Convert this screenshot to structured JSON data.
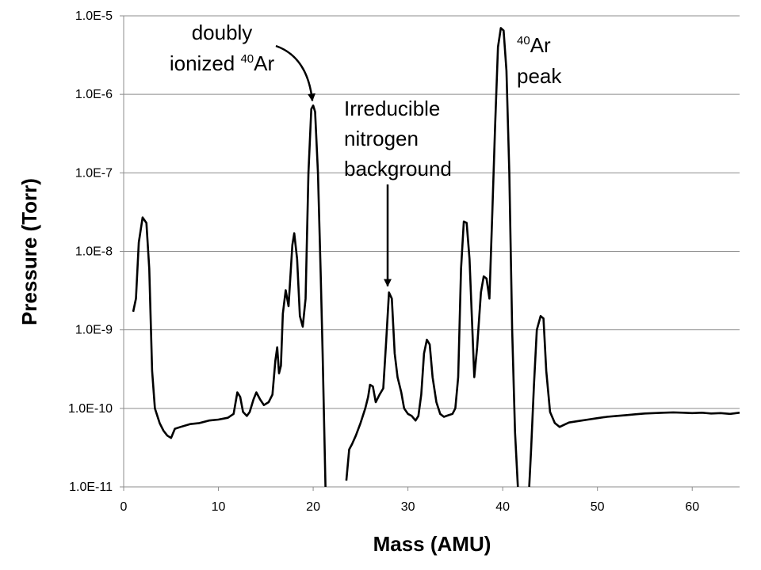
{
  "chart_data": {
    "type": "line",
    "title": "",
    "xlabel": "Mass (AMU)",
    "ylabel": "Pressure (Torr)",
    "xlim": [
      0,
      65
    ],
    "ylim": [
      1e-11,
      1e-05
    ],
    "yscale": "log",
    "grid": "horizontal major gridlines",
    "legend": "none",
    "x_ticks": [
      {
        "value": 0,
        "label": "0"
      },
      {
        "value": 10,
        "label": "10"
      },
      {
        "value": 20,
        "label": "20"
      },
      {
        "value": 30,
        "label": "30"
      },
      {
        "value": 40,
        "label": "40"
      },
      {
        "value": 50,
        "label": "50"
      },
      {
        "value": 60,
        "label": "60"
      }
    ],
    "y_ticks": [
      {
        "value": 1e-11,
        "label": "1.0E-11"
      },
      {
        "value": 1e-10,
        "label": "1.0E-10"
      },
      {
        "value": 1e-09,
        "label": "1.0E-9"
      },
      {
        "value": 1e-08,
        "label": "1.0E-8"
      },
      {
        "value": 1e-07,
        "label": "1.0E-7"
      },
      {
        "value": 1e-06,
        "label": "1.0E-6"
      },
      {
        "value": 1e-05,
        "label": "1.0E-5"
      }
    ],
    "series": [
      {
        "color": "#000000",
        "segments": [
          [
            [
              1.0,
              1.7e-09
            ],
            [
              1.3,
              2.5e-09
            ],
            [
              1.6,
              1.3e-08
            ],
            [
              2.0,
              2.7e-08
            ],
            [
              2.4,
              2.3e-08
            ],
            [
              2.7,
              6e-09
            ],
            [
              3.0,
              3e-10
            ],
            [
              3.3,
              1e-10
            ],
            [
              3.8,
              6.5e-11
            ],
            [
              4.2,
              5.2e-11
            ],
            [
              4.6,
              4.5e-11
            ],
            [
              5.0,
              4.2e-11
            ],
            [
              5.4,
              5.5e-11
            ],
            [
              6.0,
              5.8e-11
            ],
            [
              7.0,
              6.3e-11
            ],
            [
              8.0,
              6.5e-11
            ],
            [
              9.0,
              7e-11
            ],
            [
              10.0,
              7.2e-11
            ],
            [
              11.0,
              7.6e-11
            ],
            [
              11.6,
              8.5e-11
            ],
            [
              12.0,
              1.6e-10
            ],
            [
              12.3,
              1.4e-10
            ],
            [
              12.6,
              9e-11
            ],
            [
              13.0,
              8e-11
            ],
            [
              13.3,
              9e-11
            ],
            [
              13.7,
              1.3e-10
            ],
            [
              14.0,
              1.6e-10
            ],
            [
              14.4,
              1.3e-10
            ],
            [
              14.8,
              1.1e-10
            ],
            [
              15.3,
              1.2e-10
            ],
            [
              15.7,
              1.5e-10
            ],
            [
              16.0,
              4e-10
            ],
            [
              16.2,
              6e-10
            ],
            [
              16.4,
              2.8e-10
            ],
            [
              16.6,
              3.5e-10
            ],
            [
              16.8,
              1.6e-09
            ],
            [
              17.1,
              3.2e-09
            ],
            [
              17.4,
              2e-09
            ],
            [
              17.8,
              1.2e-08
            ],
            [
              18.0,
              1.7e-08
            ],
            [
              18.3,
              8e-09
            ],
            [
              18.6,
              1.5e-09
            ],
            [
              18.9,
              1.1e-09
            ],
            [
              19.2,
              2.5e-09
            ],
            [
              19.5,
              1e-07
            ],
            [
              19.8,
              6.5e-07
            ],
            [
              20.0,
              7.2e-07
            ],
            [
              20.2,
              6e-07
            ],
            [
              20.5,
              1e-07
            ],
            [
              20.8,
              5e-09
            ],
            [
              21.0,
              5e-10
            ],
            [
              21.3,
              1e-11
            ]
          ],
          [
            [
              23.5,
              1.2e-11
            ],
            [
              23.8,
              3e-11
            ],
            [
              24.1,
              3.5e-11
            ],
            [
              24.5,
              4.5e-11
            ],
            [
              25.0,
              6.5e-11
            ],
            [
              25.5,
              1e-10
            ],
            [
              25.8,
              1.4e-10
            ],
            [
              26.0,
              2e-10
            ],
            [
              26.3,
              1.9e-10
            ],
            [
              26.6,
              1.2e-10
            ],
            [
              27.0,
              1.5e-10
            ],
            [
              27.4,
              1.8e-10
            ],
            [
              27.7,
              7e-10
            ],
            [
              28.0,
              3e-09
            ],
            [
              28.3,
              2.5e-09
            ],
            [
              28.6,
              5e-10
            ],
            [
              28.9,
              2.5e-10
            ],
            [
              29.3,
              1.6e-10
            ],
            [
              29.6,
              1e-10
            ],
            [
              30.0,
              8.5e-11
            ],
            [
              30.4,
              8e-11
            ],
            [
              30.8,
              7e-11
            ],
            [
              31.1,
              8e-11
            ],
            [
              31.4,
              1.5e-10
            ],
            [
              31.7,
              5e-10
            ],
            [
              32.0,
              7.5e-10
            ],
            [
              32.3,
              6.5e-10
            ],
            [
              32.6,
              2.5e-10
            ],
            [
              33.0,
              1.2e-10
            ],
            [
              33.4,
              8.5e-11
            ],
            [
              33.8,
              7.8e-11
            ],
            [
              34.3,
              8.2e-11
            ],
            [
              34.7,
              8.5e-11
            ],
            [
              35.0,
              1e-10
            ],
            [
              35.3,
              2.5e-10
            ],
            [
              35.6,
              6e-09
            ],
            [
              35.9,
              2.4e-08
            ],
            [
              36.2,
              2.3e-08
            ],
            [
              36.5,
              8e-09
            ],
            [
              36.8,
              1e-09
            ],
            [
              37.0,
              2.5e-10
            ],
            [
              37.3,
              6e-10
            ],
            [
              37.7,
              3e-09
            ],
            [
              38.0,
              4.8e-09
            ],
            [
              38.3,
              4.5e-09
            ],
            [
              38.6,
              2.5e-09
            ],
            [
              38.9,
              3e-08
            ],
            [
              39.2,
              4e-07
            ],
            [
              39.5,
              4e-06
            ],
            [
              39.8,
              7e-06
            ],
            [
              40.1,
              6.5e-06
            ],
            [
              40.4,
              2e-06
            ],
            [
              40.7,
              1e-07
            ],
            [
              41.0,
              1e-09
            ],
            [
              41.3,
              5e-11
            ],
            [
              41.6,
              1e-11
            ]
          ],
          [
            [
              42.8,
              1e-11
            ],
            [
              43.0,
              3e-11
            ],
            [
              43.3,
              2e-10
            ],
            [
              43.6,
              1e-09
            ],
            [
              44.0,
              1.5e-09
            ],
            [
              44.3,
              1.4e-09
            ],
            [
              44.6,
              3e-10
            ],
            [
              45.0,
              9e-11
            ],
            [
              45.5,
              6.5e-11
            ],
            [
              46.0,
              5.8e-11
            ],
            [
              46.5,
              6.2e-11
            ],
            [
              47.0,
              6.6e-11
            ],
            [
              48.0,
              6.9e-11
            ],
            [
              49.0,
              7.2e-11
            ],
            [
              50.0,
              7.5e-11
            ],
            [
              51.0,
              7.8e-11
            ],
            [
              52.0,
              8e-11
            ],
            [
              53.0,
              8.2e-11
            ],
            [
              54.0,
              8.4e-11
            ],
            [
              55.0,
              8.6e-11
            ],
            [
              56.0,
              8.7e-11
            ],
            [
              57.0,
              8.8e-11
            ],
            [
              58.0,
              8.9e-11
            ],
            [
              59.0,
              8.8e-11
            ],
            [
              60.0,
              8.7e-11
            ],
            [
              61.0,
              8.8e-11
            ],
            [
              62.0,
              8.6e-11
            ],
            [
              63.0,
              8.7e-11
            ],
            [
              64.0,
              8.5e-11
            ],
            [
              65.0,
              8.8e-11
            ]
          ]
        ]
      }
    ],
    "annotations": [
      {
        "lines": [
          "doubly",
          "ionized |40|Ar"
        ],
        "points_to": {
          "x": 20.0,
          "y": 7.2e-07
        }
      },
      {
        "lines": [
          "Irreducible",
          "nitrogen",
          "background"
        ],
        "points_to": {
          "x": 28.0,
          "y": 3e-09
        }
      },
      {
        "lines": [
          "|40|Ar",
          "peak"
        ]
      }
    ]
  }
}
